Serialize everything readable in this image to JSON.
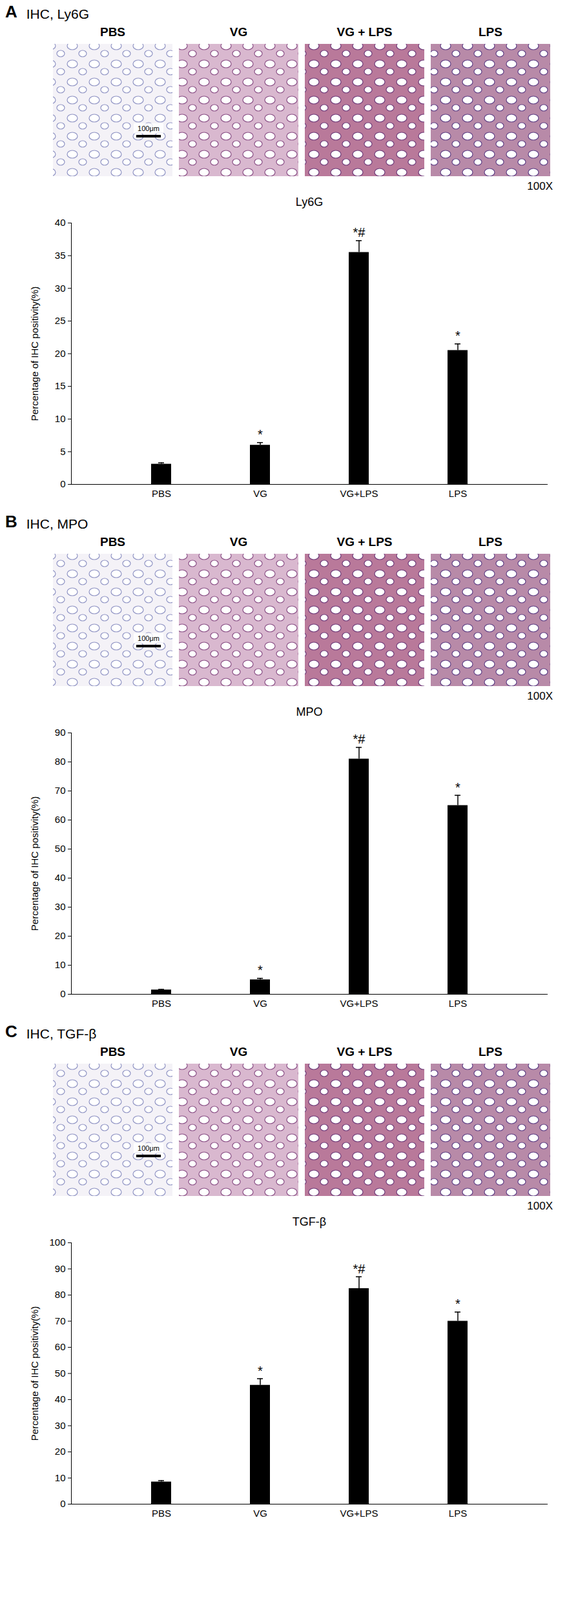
{
  "chart_data": [
    {
      "type": "bar",
      "panel": "A",
      "heading": "IHC, Ly6G",
      "image_labels": [
        "PBS",
        "VG",
        "VG + LPS",
        "LPS"
      ],
      "magnification": "100X",
      "scale_bar": "100μm",
      "title": "Ly6G",
      "y_label": "Percentage of IHC positivity(%)",
      "categories": [
        "PBS",
        "VG",
        "VG+LPS",
        "LPS"
      ],
      "values": [
        3.1,
        6.0,
        35.5,
        20.5
      ],
      "errors": [
        0.2,
        0.4,
        1.8,
        1.0
      ],
      "significance": [
        null,
        "*",
        "*#",
        "*"
      ],
      "color": "#000000",
      "ylim": [
        0,
        40
      ],
      "yticks": [
        0,
        5,
        10,
        15,
        20,
        25,
        30,
        35,
        40
      ]
    },
    {
      "type": "bar",
      "panel": "B",
      "heading": "IHC, MPO",
      "image_labels": [
        "PBS",
        "VG",
        "VG + LPS",
        "LPS"
      ],
      "magnification": "100X",
      "scale_bar": "100μm",
      "title": "MPO",
      "y_label": "Percentage of IHC positivity(%)",
      "categories": [
        "PBS",
        "VG",
        "VG+LPS",
        "LPS"
      ],
      "values": [
        1.5,
        5.0,
        81.0,
        65.0
      ],
      "errors": [
        0.2,
        0.5,
        4.0,
        3.5
      ],
      "significance": [
        null,
        "*",
        "*#",
        "*"
      ],
      "color": "#000000",
      "ylim": [
        0,
        90
      ],
      "yticks": [
        0,
        10,
        20,
        30,
        40,
        50,
        60,
        70,
        80,
        90
      ]
    },
    {
      "type": "bar",
      "panel": "C",
      "heading": "IHC, TGF-β",
      "image_labels": [
        "PBS",
        "VG",
        "VG + LPS",
        "LPS"
      ],
      "magnification": "100X",
      "scale_bar": "100μm",
      "title": "TGF-β",
      "y_label": "Percentage of IHC positivity(%)",
      "categories": [
        "PBS",
        "VG",
        "VG+LPS",
        "LPS"
      ],
      "values": [
        8.5,
        45.5,
        82.5,
        70.0
      ],
      "errors": [
        0.5,
        2.5,
        4.5,
        3.5
      ],
      "significance": [
        null,
        "*",
        "*#",
        "*"
      ],
      "color": "#000000",
      "ylim": [
        0,
        100
      ],
      "yticks": [
        0,
        10,
        20,
        30,
        40,
        50,
        60,
        70,
        80,
        90,
        100
      ]
    }
  ]
}
